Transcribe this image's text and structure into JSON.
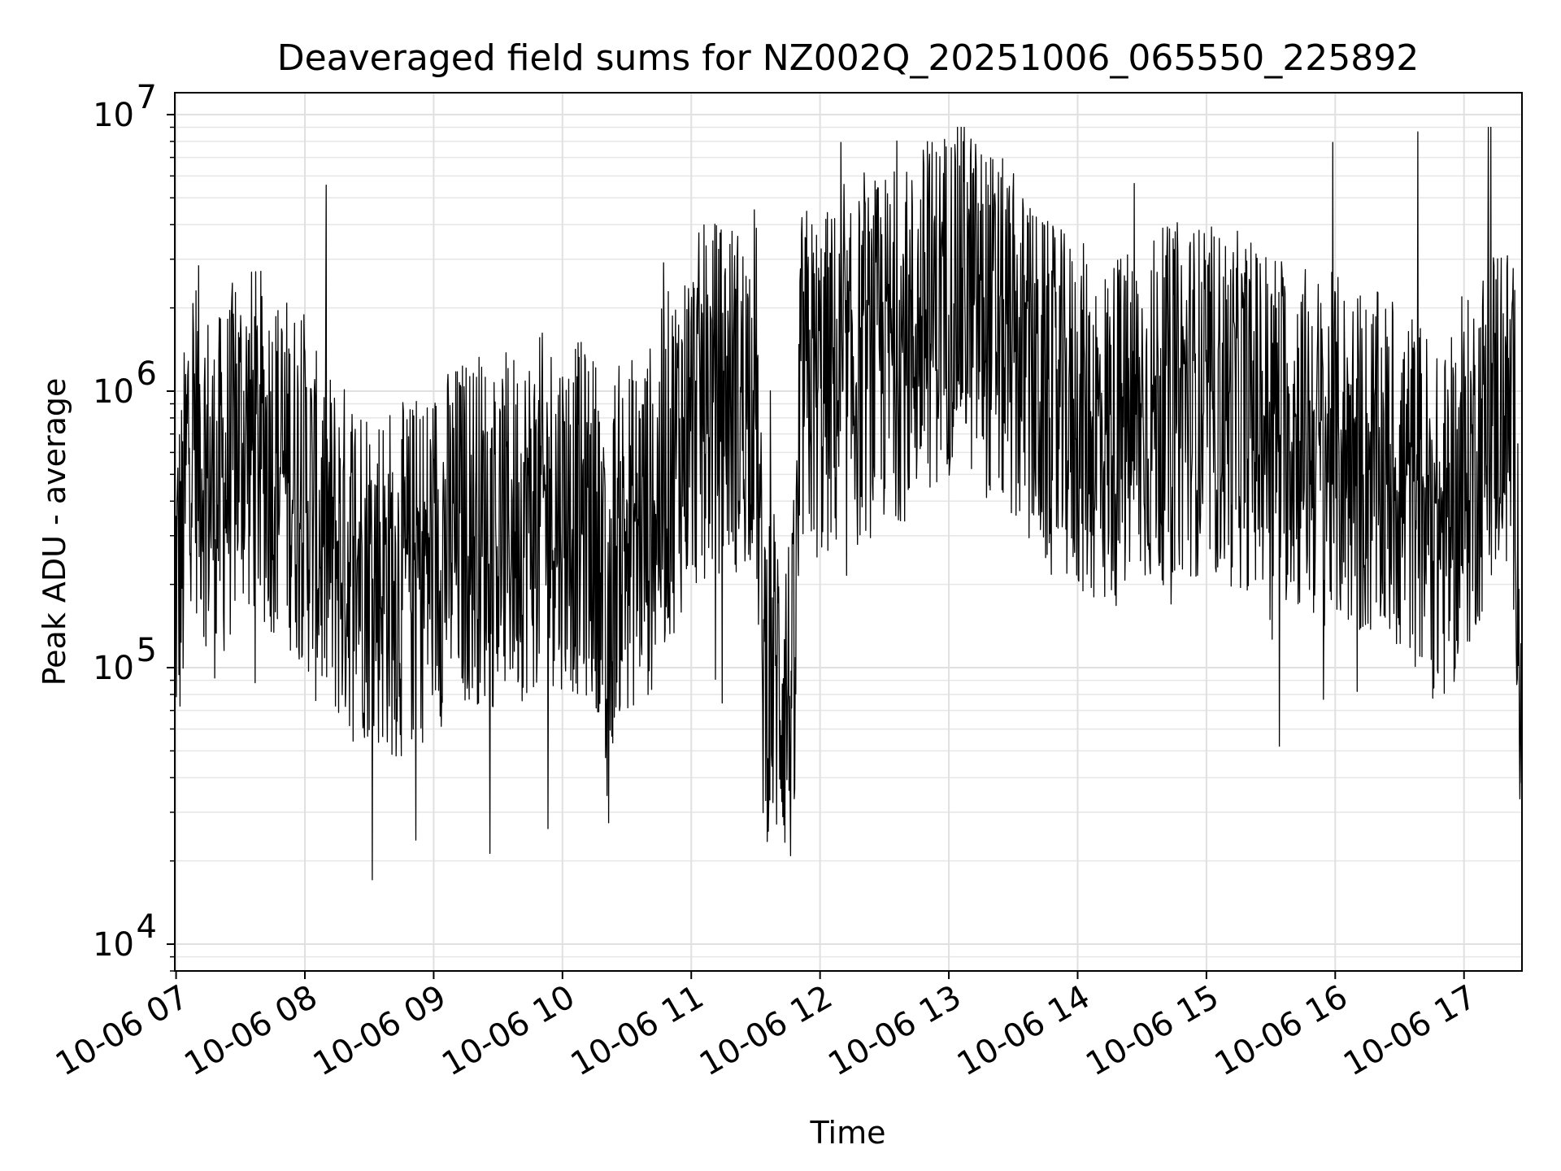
{
  "chart_data": {
    "type": "line",
    "title": "Deaveraged field sums for NZ002Q_20251006_065550_225892",
    "xlabel": "Time",
    "ylabel": "Peak ADU - average",
    "yscale": "log",
    "ylim": [
      8000,
      12000000
    ],
    "xlim": [
      6.99,
      17.45
    ],
    "grid": true,
    "legend": "none",
    "line_color": "#000000",
    "x_ticks": [
      {
        "value": 7,
        "label": "10-06 07"
      },
      {
        "value": 8,
        "label": "10-06 08"
      },
      {
        "value": 9,
        "label": "10-06 09"
      },
      {
        "value": 10,
        "label": "10-06 10"
      },
      {
        "value": 11,
        "label": "10-06 11"
      },
      {
        "value": 12,
        "label": "10-06 12"
      },
      {
        "value": 13,
        "label": "10-06 13"
      },
      {
        "value": 14,
        "label": "10-06 14"
      },
      {
        "value": 15,
        "label": "10-06 15"
      },
      {
        "value": 16,
        "label": "10-06 16"
      },
      {
        "value": 17,
        "label": "10-06 17"
      }
    ],
    "y_ticks": [
      {
        "value": 10000,
        "base": "10",
        "exp": "4"
      },
      {
        "value": 100000,
        "base": "10",
        "exp": "5"
      },
      {
        "value": 1000000,
        "base": "10",
        "exp": "6"
      },
      {
        "value": 10000000,
        "base": "10",
        "exp": "7"
      }
    ],
    "series": [
      {
        "name": "field sums",
        "x": [
          6.99,
          7.05,
          7.1,
          7.2,
          7.3,
          7.4,
          7.5,
          7.6,
          7.7,
          7.8,
          7.9,
          8.0,
          8.1,
          8.2,
          8.3,
          8.4,
          8.5,
          8.6,
          8.7,
          8.8,
          8.9,
          9.0,
          9.1,
          9.2,
          9.3,
          9.4,
          9.5,
          9.6,
          9.7,
          9.8,
          9.9,
          10.0,
          10.1,
          10.2,
          10.3,
          10.35,
          10.4,
          10.5,
          10.6,
          10.7,
          10.8,
          10.9,
          11.0,
          11.1,
          11.2,
          11.3,
          11.4,
          11.5,
          11.55,
          11.6,
          11.7,
          11.75,
          11.8,
          11.85,
          11.9,
          12.0,
          12.1,
          12.2,
          12.3,
          12.4,
          12.5,
          12.6,
          12.7,
          12.8,
          12.9,
          13.0,
          13.1,
          13.2,
          13.3,
          13.4,
          13.5,
          13.6,
          13.7,
          13.8,
          13.9,
          14.0,
          14.1,
          14.2,
          14.3,
          14.4,
          14.5,
          14.6,
          14.7,
          14.8,
          14.9,
          15.0,
          15.1,
          15.2,
          15.3,
          15.4,
          15.5,
          15.6,
          15.7,
          15.8,
          15.9,
          16.0,
          16.1,
          16.2,
          16.3,
          16.4,
          16.5,
          16.6,
          16.7,
          16.75,
          16.8,
          16.9,
          17.0,
          17.1,
          17.2,
          17.3,
          17.4,
          17.45
        ],
        "y": [
          200000,
          250000,
          800000,
          600000,
          400000,
          500000,
          700000,
          650000,
          600000,
          550000,
          500000,
          450000,
          300000,
          280000,
          250000,
          260000,
          230000,
          220000,
          200000,
          210000,
          230000,
          260000,
          280000,
          300000,
          330000,
          320000,
          300000,
          320000,
          340000,
          360000,
          380000,
          370000,
          350000,
          330000,
          300000,
          60000,
          280000,
          300000,
          320000,
          350000,
          500000,
          650000,
          800000,
          900000,
          950000,
          1000000,
          900000,
          1200000,
          120000,
          100000,
          90000,
          80000,
          70000,
          1000000,
          1100000,
          1000000,
          1100000,
          900000,
          1200000,
          1300000,
          1400000,
          1500000,
          1500000,
          1800000,
          2000000,
          2200000,
          2500000,
          2000000,
          1800000,
          1600000,
          1400000,
          1200000,
          1000000,
          900000,
          850000,
          800000,
          750000,
          700000,
          720000,
          750000,
          800000,
          850000,
          900000,
          950000,
          950000,
          900000,
          900000,
          850000,
          850000,
          800000,
          800000,
          750000,
          700000,
          650000,
          620000,
          600000,
          580000,
          550000,
          520000,
          500000,
          480000,
          450000,
          400000,
          350000,
          300000,
          350000,
          450000,
          600000,
          800000,
          1000000,
          600000,
          60000
        ]
      }
    ]
  }
}
